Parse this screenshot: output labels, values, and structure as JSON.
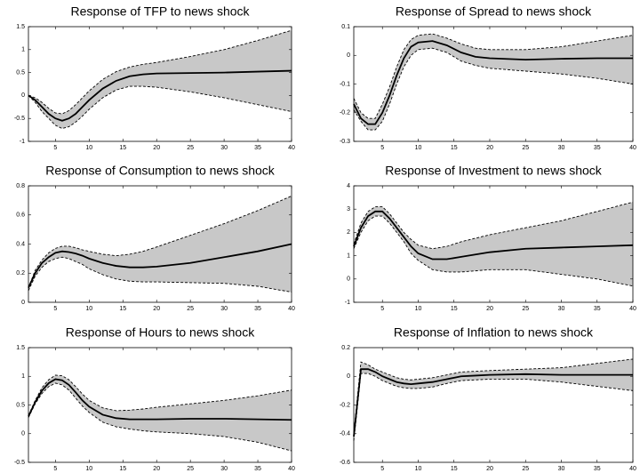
{
  "chart_data": [
    {
      "type": "band",
      "title": "Response of TFP to news shock",
      "x": [
        1,
        2,
        3,
        4,
        5,
        6,
        7,
        8,
        9,
        10,
        12,
        14,
        16,
        18,
        20,
        25,
        30,
        35,
        40
      ],
      "values": [
        0,
        -0.1,
        -0.25,
        -0.4,
        -0.5,
        -0.55,
        -0.5,
        -0.4,
        -0.25,
        -0.1,
        0.15,
        0.32,
        0.42,
        0.46,
        0.48,
        0.49,
        0.5,
        0.52,
        0.54
      ],
      "lower": [
        0,
        -0.15,
        -0.35,
        -0.5,
        -0.65,
        -0.72,
        -0.68,
        -0.58,
        -0.45,
        -0.3,
        -0.05,
        0.12,
        0.2,
        0.2,
        0.18,
        0.08,
        -0.05,
        -0.2,
        -0.35
      ],
      "upper": [
        0,
        -0.05,
        -0.15,
        -0.28,
        -0.38,
        -0.4,
        -0.33,
        -0.2,
        -0.05,
        0.1,
        0.35,
        0.52,
        0.62,
        0.68,
        0.72,
        0.85,
        1.0,
        1.2,
        1.42
      ],
      "xlim": [
        1,
        40
      ],
      "xticks": [
        5,
        10,
        15,
        20,
        25,
        30,
        35,
        40
      ],
      "ylim": [
        -1,
        1.5
      ],
      "yticks": [
        -1,
        -0.5,
        0,
        0.5,
        1,
        1.5
      ],
      "color": "#000000",
      "band_color": "#c8c8c8"
    },
    {
      "type": "band",
      "title": "Response of Spread to news shock",
      "x": [
        1,
        2,
        3,
        4,
        5,
        6,
        7,
        8,
        9,
        10,
        12,
        14,
        16,
        18,
        20,
        25,
        30,
        35,
        40
      ],
      "values": [
        -0.17,
        -0.22,
        -0.24,
        -0.24,
        -0.2,
        -0.14,
        -0.07,
        -0.01,
        0.03,
        0.045,
        0.05,
        0.035,
        0.01,
        -0.005,
        -0.01,
        -0.015,
        -0.012,
        -0.01,
        -0.01
      ],
      "lower": [
        -0.19,
        -0.23,
        -0.26,
        -0.26,
        -0.23,
        -0.17,
        -0.1,
        -0.04,
        0.0,
        0.02,
        0.025,
        0.01,
        -0.02,
        -0.035,
        -0.045,
        -0.055,
        -0.065,
        -0.08,
        -0.1
      ],
      "upper": [
        -0.15,
        -0.2,
        -0.22,
        -0.22,
        -0.17,
        -0.11,
        -0.04,
        0.02,
        0.055,
        0.07,
        0.075,
        0.06,
        0.04,
        0.025,
        0.02,
        0.02,
        0.03,
        0.05,
        0.07
      ],
      "xlim": [
        1,
        40
      ],
      "xticks": [
        5,
        10,
        15,
        20,
        25,
        30,
        35,
        40
      ],
      "ylim": [
        -0.3,
        0.1
      ],
      "yticks": [
        -0.3,
        -0.2,
        -0.1,
        0,
        0.1
      ],
      "color": "#000000",
      "band_color": "#c8c8c8"
    },
    {
      "type": "band",
      "title": "Response of Consumption to news shock",
      "x": [
        1,
        2,
        3,
        4,
        5,
        6,
        7,
        8,
        9,
        10,
        12,
        14,
        16,
        18,
        20,
        25,
        30,
        35,
        40
      ],
      "values": [
        0.1,
        0.2,
        0.27,
        0.31,
        0.34,
        0.35,
        0.345,
        0.335,
        0.32,
        0.3,
        0.27,
        0.25,
        0.24,
        0.24,
        0.245,
        0.27,
        0.31,
        0.35,
        0.4
      ],
      "lower": [
        0.08,
        0.18,
        0.24,
        0.28,
        0.3,
        0.31,
        0.3,
        0.28,
        0.26,
        0.23,
        0.19,
        0.16,
        0.145,
        0.14,
        0.14,
        0.135,
        0.13,
        0.11,
        0.07
      ],
      "upper": [
        0.1,
        0.22,
        0.29,
        0.34,
        0.37,
        0.385,
        0.385,
        0.375,
        0.36,
        0.35,
        0.33,
        0.32,
        0.33,
        0.35,
        0.38,
        0.46,
        0.54,
        0.63,
        0.73
      ],
      "xlim": [
        1,
        40
      ],
      "xticks": [
        5,
        10,
        15,
        20,
        25,
        30,
        35,
        40
      ],
      "ylim": [
        0,
        0.8
      ],
      "yticks": [
        0,
        0.2,
        0.4,
        0.6,
        0.8
      ],
      "color": "#000000",
      "band_color": "#c8c8c8"
    },
    {
      "type": "band",
      "title": "Response of Investment to news shock",
      "x": [
        1,
        2,
        3,
        4,
        5,
        6,
        7,
        8,
        9,
        10,
        12,
        14,
        16,
        18,
        20,
        25,
        30,
        35,
        40
      ],
      "values": [
        1.4,
        2.2,
        2.7,
        2.9,
        2.9,
        2.6,
        2.2,
        1.8,
        1.4,
        1.1,
        0.85,
        0.85,
        0.95,
        1.05,
        1.15,
        1.3,
        1.35,
        1.4,
        1.45
      ],
      "lower": [
        1.3,
        2.0,
        2.5,
        2.7,
        2.7,
        2.4,
        2.0,
        1.6,
        1.1,
        0.8,
        0.4,
        0.3,
        0.3,
        0.35,
        0.4,
        0.4,
        0.2,
        0.0,
        -0.3
      ],
      "upper": [
        1.5,
        2.4,
        2.9,
        3.1,
        3.1,
        2.8,
        2.4,
        2.0,
        1.7,
        1.45,
        1.3,
        1.4,
        1.6,
        1.75,
        1.9,
        2.2,
        2.5,
        2.9,
        3.3
      ],
      "xlim": [
        1,
        40
      ],
      "xticks": [
        5,
        10,
        15,
        20,
        25,
        30,
        35,
        40
      ],
      "ylim": [
        -1,
        4
      ],
      "yticks": [
        -1,
        0,
        1,
        2,
        3,
        4
      ],
      "color": "#000000",
      "band_color": "#c8c8c8"
    },
    {
      "type": "band",
      "title": "Response of Hours to news shock",
      "x": [
        1,
        2,
        3,
        4,
        5,
        6,
        7,
        8,
        9,
        10,
        12,
        14,
        16,
        18,
        20,
        25,
        30,
        35,
        40
      ],
      "values": [
        0.3,
        0.55,
        0.75,
        0.88,
        0.95,
        0.93,
        0.85,
        0.72,
        0.58,
        0.47,
        0.33,
        0.27,
        0.25,
        0.25,
        0.25,
        0.26,
        0.26,
        0.25,
        0.24
      ],
      "lower": [
        0.28,
        0.52,
        0.7,
        0.82,
        0.88,
        0.85,
        0.76,
        0.62,
        0.48,
        0.37,
        0.2,
        0.12,
        0.08,
        0.05,
        0.03,
        0.0,
        -0.05,
        -0.15,
        -0.3
      ],
      "upper": [
        0.32,
        0.58,
        0.8,
        0.94,
        1.02,
        1.01,
        0.94,
        0.82,
        0.69,
        0.58,
        0.45,
        0.4,
        0.41,
        0.43,
        0.46,
        0.52,
        0.58,
        0.66,
        0.76
      ],
      "xlim": [
        1,
        40
      ],
      "xticks": [
        5,
        10,
        15,
        20,
        25,
        30,
        35,
        40
      ],
      "ylim": [
        -0.5,
        1.5
      ],
      "yticks": [
        -0.5,
        0,
        0.5,
        1,
        1.5
      ],
      "color": "#000000",
      "band_color": "#c8c8c8"
    },
    {
      "type": "band",
      "title": "Response of Inflation to news shock",
      "x": [
        1,
        2,
        3,
        4,
        5,
        6,
        7,
        8,
        9,
        10,
        12,
        14,
        16,
        18,
        20,
        25,
        30,
        35,
        40
      ],
      "values": [
        -0.42,
        0.05,
        0.05,
        0.03,
        0.0,
        -0.02,
        -0.04,
        -0.05,
        -0.055,
        -0.05,
        -0.04,
        -0.02,
        0.0,
        0.005,
        0.01,
        0.015,
        0.01,
        0.01,
        0.01
      ],
      "lower": [
        -0.45,
        0.02,
        0.02,
        0.0,
        -0.03,
        -0.05,
        -0.07,
        -0.08,
        -0.085,
        -0.085,
        -0.075,
        -0.05,
        -0.03,
        -0.025,
        -0.02,
        -0.02,
        -0.04,
        -0.07,
        -0.1
      ],
      "upper": [
        -0.4,
        0.1,
        0.08,
        0.05,
        0.03,
        0.01,
        -0.01,
        -0.02,
        -0.025,
        -0.02,
        -0.01,
        0.01,
        0.03,
        0.035,
        0.04,
        0.05,
        0.06,
        0.09,
        0.12
      ],
      "xlim": [
        1,
        40
      ],
      "xticks": [
        5,
        10,
        15,
        20,
        25,
        30,
        35,
        40
      ],
      "ylim": [
        -0.6,
        0.2
      ],
      "yticks": [
        -0.6,
        -0.4,
        -0.2,
        0,
        0.2
      ],
      "color": "#000000",
      "band_color": "#c8c8c8"
    }
  ]
}
